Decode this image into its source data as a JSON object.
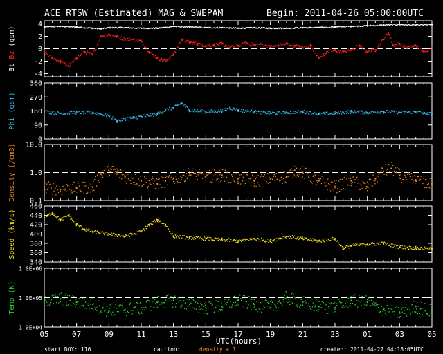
{
  "header": {
    "title": "ACE RTSW (Estimated) MAG & SWEPAM",
    "begin": "Begin: 2011-04-26 05:00:00UTC"
  },
  "footer": {
    "start_doy": "start DOY: 116",
    "caution": "caution:",
    "caution_note": "density < 1",
    "created": "created: 2011-04-27 04:18:05UTC"
  },
  "colors": {
    "background": "#000000",
    "axes": "#ffffff",
    "bt": "#ffffff",
    "bz": "#ff2020",
    "phi": "#38b8f0",
    "density": "#f08a1e",
    "speed": "#f0e020",
    "temp": "#30d030"
  },
  "chart_data": {
    "type": "scatter",
    "x_axis": {
      "label": "UTC(hours)",
      "ticks": [
        "05",
        "07",
        "09",
        "11",
        "13",
        "15",
        "17",
        "19",
        "21",
        "23",
        "01",
        "03",
        "05"
      ],
      "unit": "hours since 2011-04-26 05:00 UTC",
      "range": [
        0,
        24
      ]
    },
    "panels": [
      {
        "id": "mag",
        "ylabel_parts": [
          "Bt",
          "Bz",
          "(gsm)"
        ],
        "ylim": [
          -4.5,
          4.5
        ],
        "yticks": [
          -4,
          -2,
          0,
          2,
          4
        ],
        "tick_labels": [
          "-4",
          "-2",
          "0",
          "2",
          "4"
        ],
        "scale": "linear",
        "dashed_ref": [
          0
        ],
        "series": [
          {
            "name": "Bt",
            "color_key": "bt",
            "points": [
              [
                0,
                3.5
              ],
              [
                1,
                3.6
              ],
              [
                2,
                3.5
              ],
              [
                3,
                3.3
              ],
              [
                3.5,
                3.2
              ],
              [
                4,
                3.4
              ],
              [
                5,
                3.4
              ],
              [
                6,
                3.3
              ],
              [
                7,
                3.3
              ],
              [
                8,
                3.6
              ],
              [
                9,
                3.5
              ],
              [
                10,
                3.4
              ],
              [
                11,
                3.4
              ],
              [
                12,
                3.3
              ],
              [
                13,
                3.4
              ],
              [
                14,
                3.3
              ],
              [
                15,
                3.3
              ],
              [
                16,
                3.4
              ],
              [
                17,
                3.4
              ],
              [
                18,
                3.5
              ],
              [
                19,
                3.6
              ],
              [
                20,
                3.7
              ],
              [
                21,
                3.8
              ],
              [
                22,
                3.9
              ],
              [
                23,
                3.8
              ],
              [
                24,
                3.9
              ]
            ]
          },
          {
            "name": "Bz",
            "color_key": "bz",
            "points": [
              [
                0,
                -0.5
              ],
              [
                0.5,
                -1.5
              ],
              [
                1,
                -2
              ],
              [
                1.5,
                -2.8
              ],
              [
                2,
                -1.5
              ],
              [
                2.5,
                -0.5
              ],
              [
                3,
                -1
              ],
              [
                3.5,
                2
              ],
              [
                4,
                2.3
              ],
              [
                4.5,
                2
              ],
              [
                5,
                1.5
              ],
              [
                5.5,
                1.5
              ],
              [
                6,
                1.2
              ],
              [
                6.5,
                -0.5
              ],
              [
                7,
                -1.5
              ],
              [
                7.5,
                -2
              ],
              [
                8,
                -1
              ],
              [
                8.5,
                1.5
              ],
              [
                9,
                1
              ],
              [
                9.5,
                0.8
              ],
              [
                10,
                0.5
              ],
              [
                10.5,
                0.6
              ],
              [
                11,
                0.8
              ],
              [
                11.5,
                0.2
              ],
              [
                12,
                0.5
              ],
              [
                12.5,
                0.9
              ],
              [
                13,
                0.6
              ],
              [
                13.5,
                0.7
              ],
              [
                14,
                0.3
              ],
              [
                14.5,
                0.5
              ],
              [
                15,
                0.8
              ],
              [
                15.5,
                0.5
              ],
              [
                16,
                0.2
              ],
              [
                16.5,
                0.5
              ],
              [
                17,
                -1.5
              ],
              [
                17.5,
                -0.5
              ],
              [
                18,
                -0.3
              ],
              [
                18.5,
                -0.5
              ],
              [
                19,
                -0.2
              ],
              [
                19.5,
                0.5
              ],
              [
                20,
                -0.5
              ],
              [
                20.5,
                -0.2
              ],
              [
                21,
                1.5
              ],
              [
                21.3,
                2.6
              ],
              [
                21.6,
                0.5
              ],
              [
                22,
                0.8
              ],
              [
                22.5,
                0.2
              ],
              [
                23,
                0.5
              ],
              [
                23.5,
                -0.5
              ],
              [
                24,
                0.2
              ]
            ]
          }
        ]
      },
      {
        "id": "phi",
        "ylabel_parts": [
          "Phi",
          "(gsm)"
        ],
        "ylim": [
          0,
          360
        ],
        "yticks": [
          0,
          90,
          180,
          270,
          360
        ],
        "tick_labels": [
          "0",
          "90",
          "180",
          "270",
          "360"
        ],
        "scale": "linear",
        "dashed_ref": [],
        "series": [
          {
            "name": "Phi",
            "color_key": "phi",
            "points": [
              [
                0,
                175
              ],
              [
                1,
                165
              ],
              [
                2,
                170
              ],
              [
                3,
                170
              ],
              [
                4,
                150
              ],
              [
                4.5,
                115
              ],
              [
                5,
                130
              ],
              [
                5.5,
                135
              ],
              [
                6,
                145
              ],
              [
                7,
                160
              ],
              [
                7.5,
                185
              ],
              [
                8,
                200
              ],
              [
                8.5,
                230
              ],
              [
                9,
                185
              ],
              [
                10,
                175
              ],
              [
                11,
                180
              ],
              [
                11.5,
                200
              ],
              [
                12,
                185
              ],
              [
                13,
                175
              ],
              [
                14,
                165
              ],
              [
                15,
                170
              ],
              [
                16,
                175
              ],
              [
                17,
                160
              ],
              [
                18,
                165
              ],
              [
                19,
                175
              ],
              [
                20,
                170
              ],
              [
                21,
                175
              ],
              [
                22,
                170
              ],
              [
                23,
                175
              ],
              [
                23.5,
                165
              ],
              [
                24,
                160
              ]
            ]
          }
        ]
      },
      {
        "id": "density",
        "ylabel_parts": [
          "Density",
          "(/cm3)"
        ],
        "ylim": [
          0.1,
          10
        ],
        "yticks": [
          0.1,
          1,
          10
        ],
        "tick_labels": [
          "0.1",
          "1.0",
          "10.0"
        ],
        "scale": "log",
        "dashed_ref": [
          1
        ],
        "series": [
          {
            "name": "Density",
            "color_key": "density",
            "points": [
              [
                0,
                0.3
              ],
              [
                1,
                0.25
              ],
              [
                2,
                0.28
              ],
              [
                3,
                0.3
              ],
              [
                3.5,
                0.9
              ],
              [
                4,
                1.2
              ],
              [
                4.5,
                1.0
              ],
              [
                5,
                0.7
              ],
              [
                6,
                0.5
              ],
              [
                7,
                0.4
              ],
              [
                7.5,
                0.5
              ],
              [
                8,
                0.6
              ],
              [
                9,
                0.9
              ],
              [
                10,
                0.7
              ],
              [
                11,
                0.8
              ],
              [
                12,
                0.6
              ],
              [
                13,
                0.5
              ],
              [
                14,
                0.6
              ],
              [
                15,
                0.7
              ],
              [
                15.5,
                1.2
              ],
              [
                16,
                1.0
              ],
              [
                17,
                0.5
              ],
              [
                18,
                0.3
              ],
              [
                19,
                0.5
              ],
              [
                20,
                0.3
              ],
              [
                20.5,
                0.6
              ],
              [
                21,
                1.1
              ],
              [
                21.5,
                1.4
              ],
              [
                22,
                0.8
              ],
              [
                23,
                0.5
              ],
              [
                24,
                0.4
              ]
            ]
          }
        ]
      },
      {
        "id": "speed",
        "ylabel_parts": [
          "Speed",
          "(km/s)"
        ],
        "ylim": [
          340,
          460
        ],
        "yticks": [
          340,
          360,
          380,
          400,
          420,
          440,
          460
        ],
        "tick_labels": [
          "340",
          "360",
          "380",
          "400",
          "420",
          "440",
          "460"
        ],
        "scale": "linear",
        "dashed_ref": [],
        "series": [
          {
            "name": "Speed",
            "color_key": "speed",
            "points": [
              [
                0,
                435
              ],
              [
                0.5,
                445
              ],
              [
                1,
                430
              ],
              [
                1.5,
                440
              ],
              [
                2,
                420
              ],
              [
                2.5,
                410
              ],
              [
                3,
                405
              ],
              [
                4,
                400
              ],
              [
                5,
                395
              ],
              [
                6,
                405
              ],
              [
                6.5,
                420
              ],
              [
                7,
                430
              ],
              [
                7.5,
                420
              ],
              [
                8,
                395
              ],
              [
                9,
                392
              ],
              [
                10,
                390
              ],
              [
                11,
                388
              ],
              [
                12,
                385
              ],
              [
                13,
                390
              ],
              [
                14,
                385
              ],
              [
                15,
                395
              ],
              [
                16,
                390
              ],
              [
                17,
                385
              ],
              [
                18,
                390
              ],
              [
                18.5,
                370
              ],
              [
                19,
                375
              ],
              [
                20,
                378
              ],
              [
                21,
                380
              ],
              [
                22,
                372
              ],
              [
                23,
                370
              ],
              [
                24,
                368
              ]
            ]
          }
        ]
      },
      {
        "id": "temp",
        "ylabel_parts": [
          "Temp",
          "(K)"
        ],
        "ylim": [
          10000,
          1000000
        ],
        "yticks": [
          10000,
          100000,
          1000000
        ],
        "tick_labels": [
          "1.0E+04",
          "1.0E+05",
          "1.0E+06"
        ],
        "scale": "log",
        "dashed_ref": [
          100000
        ],
        "series": [
          {
            "name": "Temp",
            "color_key": "temp",
            "points": [
              [
                0,
                80000
              ],
              [
                1,
                90000
              ],
              [
                2,
                70000
              ],
              [
                3,
                60000
              ],
              [
                4,
                35000
              ],
              [
                5,
                40000
              ],
              [
                6,
                45000
              ],
              [
                7,
                70000
              ],
              [
                8,
                80000
              ],
              [
                9,
                60000
              ],
              [
                10,
                45000
              ],
              [
                11,
                50000
              ],
              [
                12,
                80000
              ],
              [
                13,
                60000
              ],
              [
                14,
                45000
              ],
              [
                15,
                100000
              ],
              [
                16,
                70000
              ],
              [
                17,
                50000
              ],
              [
                18,
                45000
              ],
              [
                19,
                80000
              ],
              [
                20,
                70000
              ],
              [
                21,
                40000
              ],
              [
                22,
                30000
              ],
              [
                23,
                50000
              ],
              [
                24,
                35000
              ]
            ]
          }
        ]
      }
    ]
  }
}
